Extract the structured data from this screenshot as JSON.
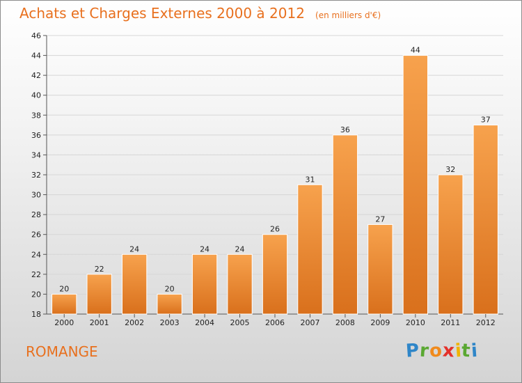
{
  "chart_data": {
    "type": "bar",
    "title": "Achats et Charges Externes 2000 à 2012",
    "subtitle": "(en milliers d'€)",
    "categories": [
      "2000",
      "2001",
      "2002",
      "2003",
      "2004",
      "2005",
      "2006",
      "2007",
      "2008",
      "2009",
      "2010",
      "2011",
      "2012"
    ],
    "values": [
      20,
      22,
      24,
      20,
      24,
      24,
      26,
      31,
      36,
      27,
      44,
      32,
      37
    ],
    "xlabel": "",
    "ylabel": "",
    "ylim": [
      18,
      46
    ],
    "yticks": [
      18,
      20,
      22,
      24,
      26,
      28,
      30,
      32,
      34,
      36,
      38,
      40,
      42,
      44,
      46
    ],
    "grid": true,
    "bar_color_top": "#f7a24d",
    "bar_color_bottom": "#d9701c"
  },
  "commune": "ROMANGE",
  "brand": {
    "letters": [
      "P",
      "r",
      "o",
      "x",
      "i",
      "t",
      "i"
    ],
    "colors": [
      "#2f86c8",
      "#5aa832",
      "#f08a1c",
      "#e4312b",
      "#f0b400",
      "#5aa832",
      "#2f86c8"
    ]
  }
}
